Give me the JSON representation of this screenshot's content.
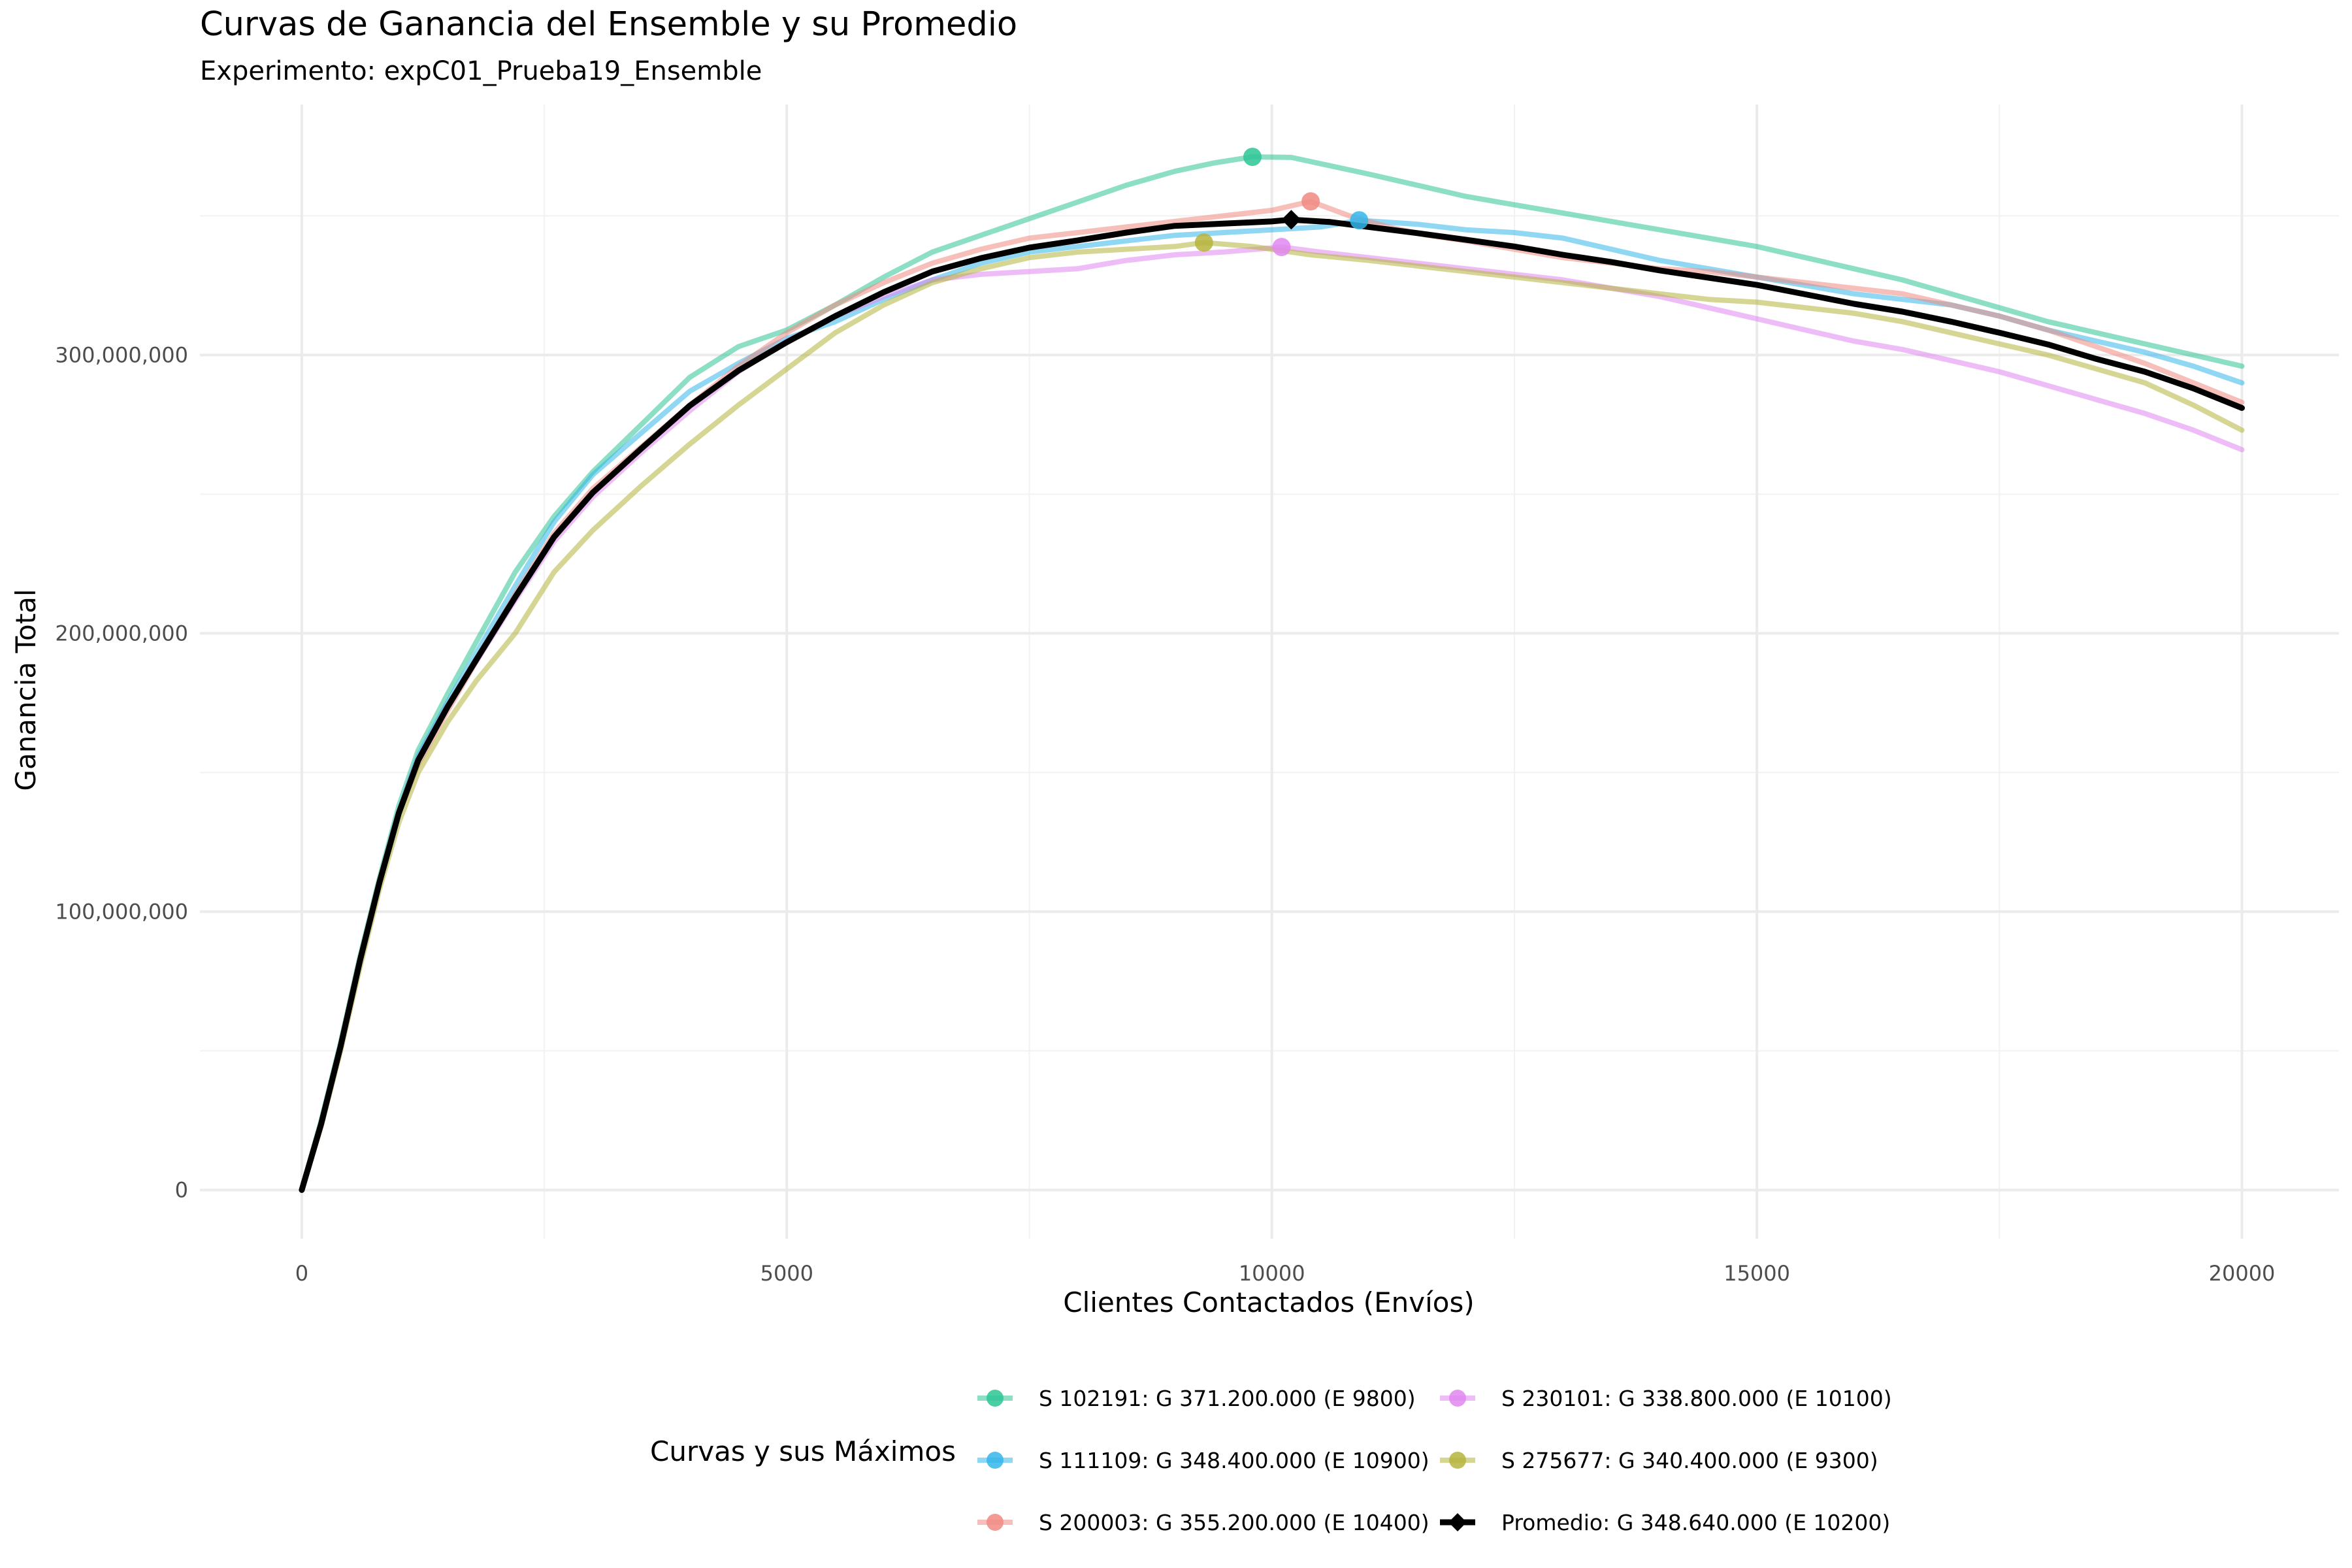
{
  "chart_data": {
    "type": "line",
    "title": "Curvas de Ganancia del Ensemble y su Promedio",
    "subtitle": "Experimento: expC01_Prueba19_Ensemble",
    "xlabel": "Clientes Contactados (Envíos)",
    "ylabel": "Ganancia Total",
    "xlim": [
      -1050,
      21000
    ],
    "ylim": [
      -17500000,
      390000000
    ],
    "x_ticks": [
      0,
      5000,
      10000,
      15000,
      20000
    ],
    "x_tick_labels": [
      "0",
      "5000",
      "10000",
      "15000",
      "20000"
    ],
    "y_ticks": [
      0,
      100000000,
      200000000,
      300000000
    ],
    "y_tick_labels": [
      "0",
      "100,000,000",
      "200,000,000",
      "300,000,000"
    ],
    "grid": true,
    "legend": {
      "title": "Curvas y sus Máximos",
      "position": "bottom"
    },
    "series": [
      {
        "name": "S 102191: G 371.200.000 (E 9800)",
        "color": "#2dc595",
        "max": {
          "x": 9800,
          "y": 371200000
        },
        "x": [
          0,
          200,
          400,
          600,
          800,
          1000,
          1200,
          1500,
          1800,
          2200,
          2600,
          3000,
          3500,
          4000,
          4500,
          5000,
          5500,
          6000,
          6500,
          7000,
          7500,
          8000,
          8500,
          9000,
          9400,
          9800,
          10200,
          10600,
          11000,
          11500,
          12000,
          12500,
          13000,
          13500,
          14000,
          14500,
          15000,
          15500,
          16000,
          16500,
          17000,
          17500,
          18000,
          18500,
          19000,
          19500,
          20000
        ],
        "y": [
          0,
          25000000,
          53000000,
          84000000,
          112000000,
          138000000,
          158000000,
          178000000,
          197000000,
          222000000,
          242000000,
          258000000,
          275000000,
          292000000,
          303000000,
          309000000,
          318000000,
          328000000,
          337000000,
          343000000,
          349000000,
          355000000,
          361000000,
          366000000,
          369000000,
          371200000,
          371000000,
          368000000,
          365000000,
          361000000,
          357000000,
          354000000,
          351000000,
          348000000,
          345000000,
          342000000,
          339000000,
          335000000,
          331000000,
          327000000,
          322000000,
          317000000,
          312000000,
          308000000,
          304000000,
          300000000,
          296000000
        ]
      },
      {
        "name": "S 111109: G 348.400.000 (E 10900)",
        "color": "#35b6ea",
        "max": {
          "x": 10900,
          "y": 348400000
        },
        "x": [
          0,
          200,
          400,
          600,
          800,
          1000,
          1200,
          1500,
          1800,
          2200,
          2600,
          3000,
          3500,
          4000,
          4500,
          5000,
          5500,
          6000,
          6500,
          7000,
          7500,
          8000,
          8500,
          9000,
          9500,
          10000,
          10500,
          10900,
          11500,
          12000,
          12500,
          13000,
          13500,
          14000,
          14500,
          15000,
          15500,
          16000,
          16500,
          17000,
          17500,
          18000,
          18500,
          19000,
          19500,
          20000
        ],
        "y": [
          0,
          24000000,
          52000000,
          83000000,
          111000000,
          136000000,
          156000000,
          175000000,
          193000000,
          217000000,
          240000000,
          257000000,
          272000000,
          287000000,
          297000000,
          306000000,
          312000000,
          320000000,
          327000000,
          333000000,
          337000000,
          339000000,
          341000000,
          343000000,
          344000000,
          345000000,
          346000000,
          348400000,
          347000000,
          345000000,
          344000000,
          342000000,
          338000000,
          334000000,
          331000000,
          328000000,
          325000000,
          322000000,
          320000000,
          318000000,
          314000000,
          309000000,
          305000000,
          301000000,
          296000000,
          290000000
        ]
      },
      {
        "name": "S 200003: G 355.200.000 (E 10400)",
        "color": "#f08a82",
        "max": {
          "x": 10400,
          "y": 355200000
        },
        "x": [
          0,
          200,
          400,
          600,
          800,
          1000,
          1200,
          1500,
          1800,
          2200,
          2600,
          3000,
          3500,
          4000,
          4500,
          5000,
          5500,
          6000,
          6500,
          7000,
          7500,
          8000,
          8500,
          9000,
          9500,
          10000,
          10400,
          10800,
          11200,
          11600,
          12000,
          12500,
          13000,
          13500,
          14000,
          14500,
          15000,
          15500,
          16000,
          16500,
          17000,
          17500,
          18000,
          18500,
          19000,
          19500,
          20000
        ],
        "y": [
          0,
          23000000,
          51000000,
          82000000,
          110000000,
          135000000,
          153000000,
          172000000,
          190000000,
          214000000,
          236000000,
          252000000,
          267000000,
          282000000,
          296000000,
          308000000,
          318000000,
          326000000,
          333000000,
          338000000,
          342000000,
          344000000,
          346000000,
          348000000,
          350000000,
          352000000,
          355200000,
          350000000,
          346000000,
          343000000,
          341000000,
          338000000,
          335000000,
          333000000,
          331000000,
          330000000,
          328000000,
          326000000,
          324000000,
          322000000,
          318000000,
          314000000,
          309000000,
          303000000,
          297000000,
          290000000,
          283000000
        ]
      },
      {
        "name": "S 230101: G 338.800.000 (E 10100)",
        "color": "#e087f0",
        "max": {
          "x": 10100,
          "y": 338800000
        },
        "x": [
          0,
          200,
          400,
          600,
          800,
          1000,
          1200,
          1500,
          1800,
          2200,
          2600,
          3000,
          3500,
          4000,
          4500,
          5000,
          5500,
          6000,
          6500,
          7000,
          7500,
          8000,
          8500,
          9000,
          9500,
          10100,
          10500,
          11000,
          11500,
          12000,
          12500,
          13000,
          13500,
          14000,
          14500,
          15000,
          15500,
          16000,
          16500,
          17000,
          17500,
          18000,
          18500,
          19000,
          19500,
          20000
        ],
        "y": [
          0,
          24000000,
          52000000,
          83000000,
          111000000,
          136000000,
          155000000,
          174000000,
          190000000,
          212000000,
          233000000,
          249000000,
          265000000,
          280000000,
          294000000,
          305000000,
          314000000,
          321000000,
          327000000,
          329000000,
          330000000,
          331000000,
          334000000,
          336000000,
          337000000,
          338800000,
          337000000,
          335000000,
          333000000,
          331000000,
          329000000,
          327000000,
          324000000,
          321000000,
          317000000,
          313000000,
          309000000,
          305000000,
          302000000,
          298000000,
          294000000,
          289000000,
          284000000,
          279000000,
          273000000,
          266000000
        ]
      },
      {
        "name": "S 275677: G 340.400.000 (E 9300)",
        "color": "#b5b43c",
        "max": {
          "x": 9300,
          "y": 340400000
        },
        "x": [
          0,
          200,
          400,
          600,
          800,
          1000,
          1200,
          1500,
          1800,
          2200,
          2600,
          3000,
          3500,
          4000,
          4500,
          5000,
          5500,
          6000,
          6500,
          7000,
          7500,
          8000,
          8500,
          9000,
          9300,
          9800,
          10400,
          11000,
          11500,
          12000,
          12500,
          13000,
          13500,
          14000,
          14500,
          15000,
          15500,
          16000,
          16500,
          17000,
          17500,
          18000,
          18500,
          19000,
          19500,
          20000
        ],
        "y": [
          0,
          23000000,
          50000000,
          80000000,
          108000000,
          132000000,
          150000000,
          168000000,
          183000000,
          200000000,
          222000000,
          237000000,
          253000000,
          268000000,
          282000000,
          295000000,
          308000000,
          318000000,
          326000000,
          331000000,
          335000000,
          337000000,
          338000000,
          339000000,
          340400000,
          339000000,
          336000000,
          334000000,
          332000000,
          330000000,
          328000000,
          326000000,
          324000000,
          322000000,
          320000000,
          319000000,
          317000000,
          315000000,
          312000000,
          308000000,
          304000000,
          300000000,
          295000000,
          290000000,
          282000000,
          273000000
        ]
      },
      {
        "name": "Promedio: G 348.640.000 (E 10200)",
        "color": "#000000",
        "max": {
          "x": 10200,
          "y": 348640000
        },
        "x": [
          0,
          200,
          400,
          600,
          800,
          1000,
          1200,
          1500,
          1800,
          2200,
          2600,
          3000,
          3500,
          4000,
          4500,
          5000,
          5500,
          6000,
          6500,
          7000,
          7500,
          8000,
          8500,
          9000,
          9500,
          10000,
          10200,
          10600,
          11000,
          11500,
          12000,
          12500,
          13000,
          13500,
          14000,
          14500,
          15000,
          15500,
          16000,
          16500,
          17000,
          17500,
          18000,
          18500,
          19000,
          19500,
          20000
        ],
        "y": [
          0,
          23800000,
          51600000,
          82400000,
          110400000,
          135400000,
          154400000,
          173400000,
          190600000,
          213000000,
          234600000,
          250600000,
          266400000,
          281800000,
          294400000,
          304600000,
          314000000,
          322600000,
          330000000,
          334800000,
          338600000,
          341200000,
          344000000,
          346400000,
          347200000,
          348000000,
          348640000,
          347800000,
          346000000,
          343800000,
          341400000,
          339000000,
          336000000,
          333400000,
          330400000,
          327800000,
          325200000,
          321800000,
          318400000,
          315600000,
          312000000,
          308000000,
          303800000,
          298600000,
          294000000,
          288000000,
          281000000
        ]
      }
    ]
  }
}
